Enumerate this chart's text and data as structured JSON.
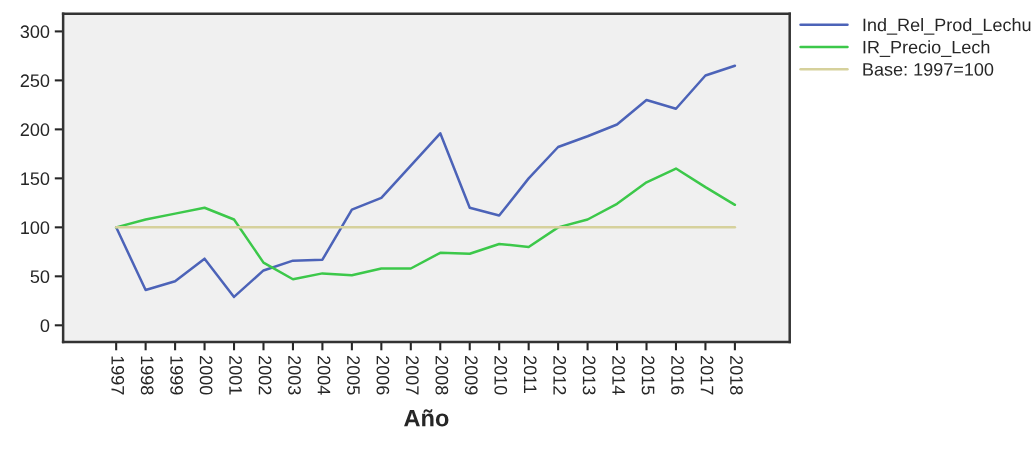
{
  "chart_data": {
    "type": "line",
    "xlabel": "Año",
    "categories": [
      "1997",
      "1998",
      "1999",
      "2000",
      "2001",
      "2002",
      "2003",
      "2004",
      "2005",
      "2006",
      "2007",
      "2008",
      "2009",
      "2010",
      "2011",
      "2012",
      "2013",
      "2014",
      "2015",
      "2016",
      "2017",
      "2018"
    ],
    "series": [
      {
        "name": "Ind_Rel_Prod_Lechu",
        "color": "#4c63b8",
        "values": [
          100,
          36,
          45,
          68,
          29,
          56,
          66,
          67,
          118,
          130,
          163,
          196,
          120,
          112,
          150,
          182,
          193,
          205,
          230,
          221,
          255,
          265
        ]
      },
      {
        "name": "IR_Precio_Lech",
        "color": "#3cc84a",
        "values": [
          100,
          108,
          114,
          120,
          108,
          64,
          47,
          53,
          51,
          58,
          58,
          74,
          73,
          83,
          80,
          100,
          108,
          124,
          146,
          160,
          141,
          123
        ]
      },
      {
        "name": "Base: 1997=100",
        "color": "#d6d19c",
        "values": [
          100,
          100,
          100,
          100,
          100,
          100,
          100,
          100,
          100,
          100,
          100,
          100,
          100,
          100,
          100,
          100,
          100,
          100,
          100,
          100,
          100,
          100
        ]
      }
    ],
    "ylim": [
      -17,
      318
    ],
    "yticks": [
      0,
      50,
      100,
      150,
      200,
      250,
      300
    ],
    "grid": false,
    "legend": "top right"
  }
}
